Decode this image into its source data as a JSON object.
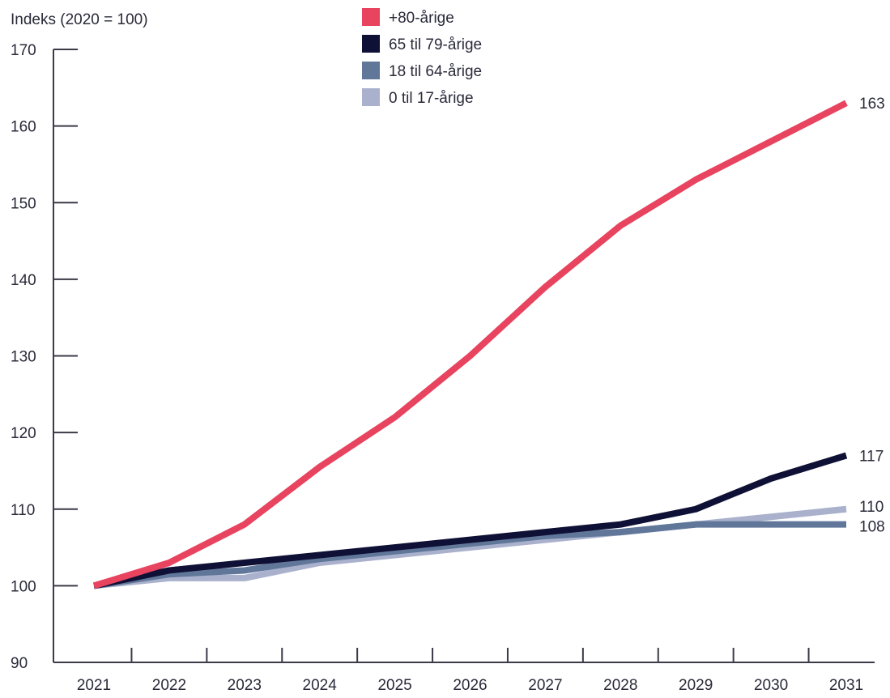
{
  "chart_data": {
    "type": "line",
    "ylabel": "Indeks (2020 = 100)",
    "xlabel": "",
    "title": "",
    "x": [
      "2021",
      "2022",
      "2023",
      "2024",
      "2025",
      "2026",
      "2027",
      "2028",
      "2029",
      "2030",
      "2031"
    ],
    "ylim": [
      90,
      170
    ],
    "yticks": [
      90,
      100,
      110,
      120,
      130,
      140,
      150,
      160,
      170
    ],
    "grid": false,
    "legend_position": "top",
    "series": [
      {
        "name": "+80-årige",
        "color": "#e8435f",
        "values": [
          100,
          103,
          108,
          115.5,
          122,
          130,
          139,
          147,
          153,
          158,
          163
        ],
        "end_label": "163"
      },
      {
        "name": "65 til 79-årige",
        "color": "#0f1035",
        "values": [
          100,
          102,
          103,
          104,
          105,
          106,
          107,
          108,
          110,
          114,
          117
        ],
        "end_label": "117"
      },
      {
        "name": "18 til 64-årige",
        "color": "#60779a",
        "values": [
          100,
          101.5,
          102,
          103.5,
          104.5,
          105.5,
          106.5,
          107,
          108,
          108,
          108
        ],
        "end_label": "108"
      },
      {
        "name": "0 til 17-årige",
        "color": "#aab1cc",
        "values": [
          100,
          101,
          101,
          103,
          104,
          105,
          106,
          107,
          108,
          109,
          110
        ],
        "end_label": "110"
      }
    ]
  }
}
